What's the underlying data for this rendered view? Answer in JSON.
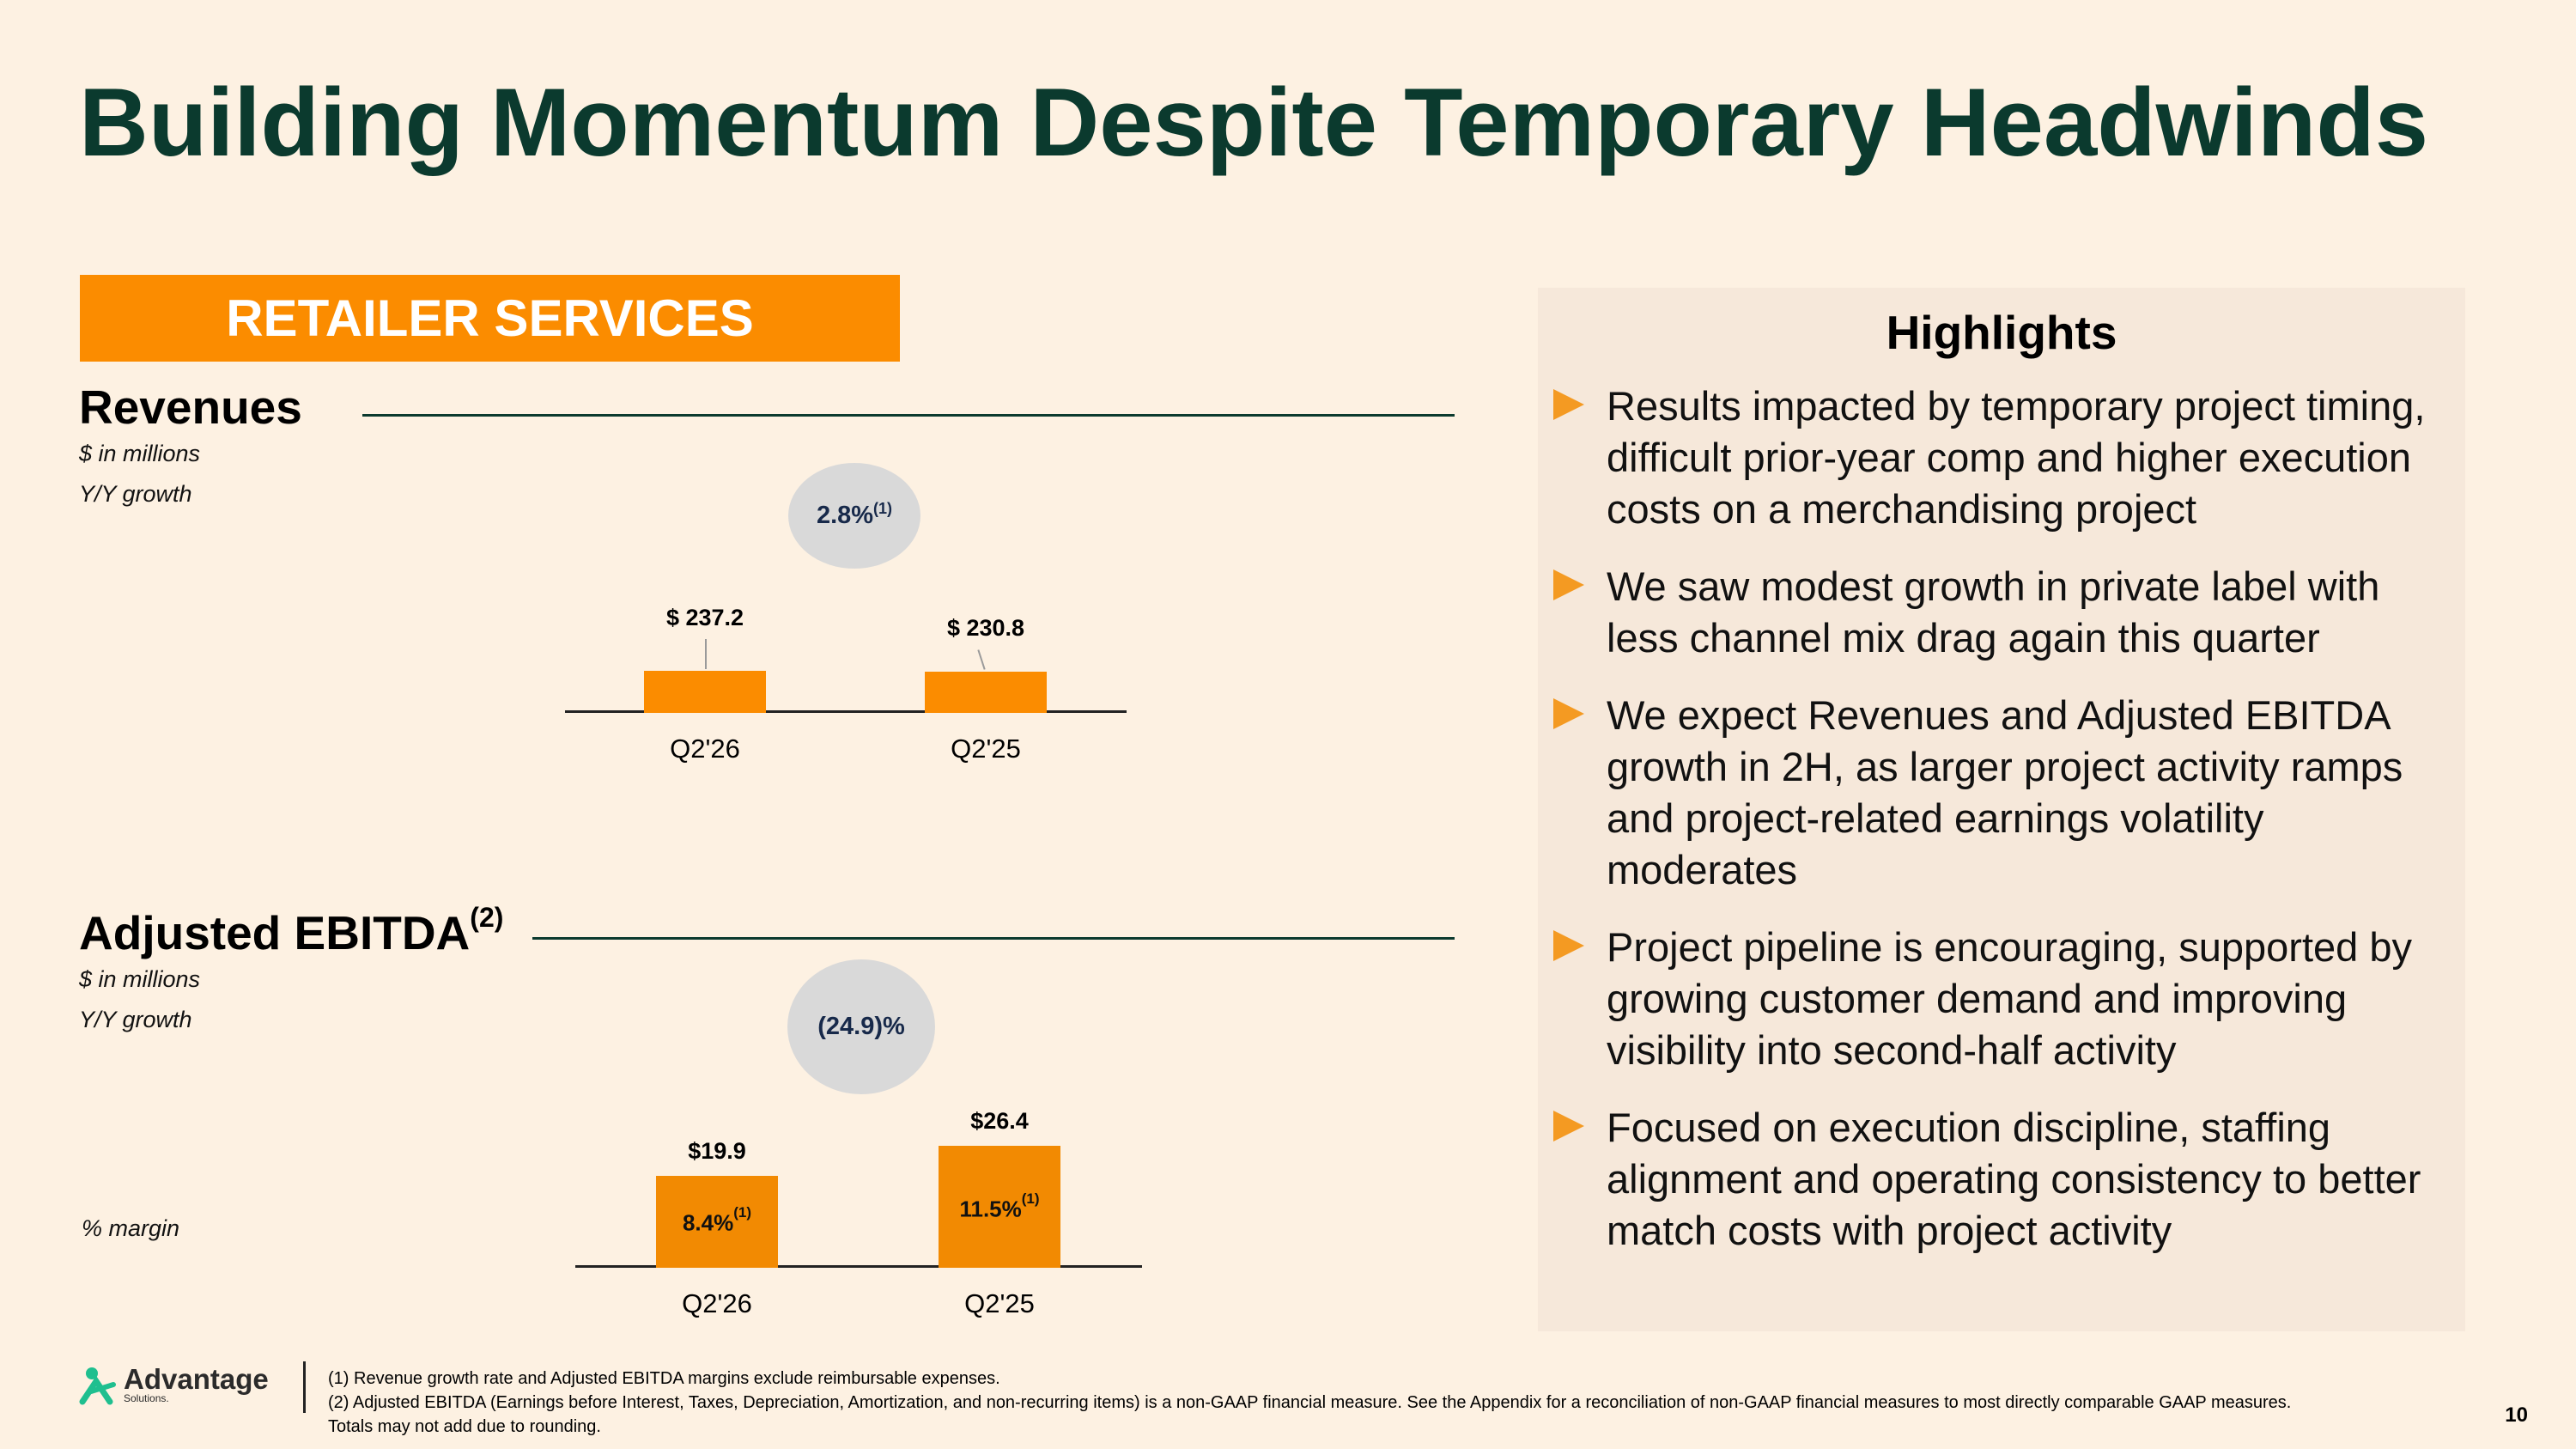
{
  "title": "Building Momentum Despite Temporary Headwinds",
  "segment": "RETAILER SERVICES",
  "revenues": {
    "title": "Revenues",
    "unit_note": "$ in millions",
    "growth_label": "Y/Y growth",
    "growth_value": "2.8%",
    "growth_note": "(1)"
  },
  "ebitda": {
    "title": "Adjusted EBITDA",
    "title_note": "(2)",
    "unit_note": "$ in millions",
    "growth_label": "Y/Y growth",
    "growth_value": "(24.9)%",
    "margin_label": "% margin"
  },
  "chart_data": [
    {
      "type": "bar",
      "title": "Revenues",
      "categories": [
        "Q2'26",
        "Q2'25"
      ],
      "values": [
        237.2,
        230.8
      ],
      "labels": [
        "$ 237.2",
        "$ 230.8"
      ],
      "ylim": [
        0,
        2400
      ]
    },
    {
      "type": "bar",
      "title": "Adjusted EBITDA",
      "categories": [
        "Q2'26",
        "Q2'25"
      ],
      "values": [
        19.9,
        26.4
      ],
      "labels": [
        "$19.9",
        "$26.4"
      ],
      "margins": [
        "8.4%",
        "11.5%"
      ],
      "margin_note": "(1)",
      "ylim": [
        0,
        28
      ]
    }
  ],
  "highlights": {
    "heading": "Highlights",
    "items": [
      "Results impacted by temporary project timing, difficult prior-year comp and higher execution costs on a merchandising project",
      "We saw modest growth in private label with less channel mix drag again this quarter",
      "We expect Revenues and Adjusted EBITDA growth in 2H, as larger project activity ramps and project-related earnings volatility moderates",
      "Project pipeline is encouraging, supported by growing customer demand and improving visibility into second-half activity",
      "Focused on execution discipline, staffing alignment and operating consistency to better match costs with project activity"
    ]
  },
  "footnotes": [
    "(1) Revenue growth rate and Adjusted EBITDA margins exclude reimbursable expenses.",
    "(2) Adjusted EBITDA (Earnings before Interest, Taxes, Depreciation, Amortization, and non-recurring items) is a non-GAAP financial measure. See the Appendix for a reconciliation of non-GAAP financial measures to most directly comparable GAAP measures.",
    "Totals may not add due to rounding."
  ],
  "logo": {
    "name": "Advantage",
    "sub": "Solutions."
  },
  "page_number": "10",
  "colors": {
    "title": "#0b3a2e",
    "accent": "#fb8c00",
    "bubble": "#d9d9d9"
  },
  "icons": [
    "advantage-logo-icon",
    "triangle-bullet-icon"
  ]
}
